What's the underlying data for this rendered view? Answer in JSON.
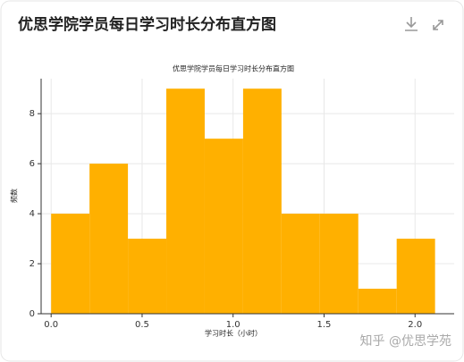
{
  "header": {
    "title": "优思学院学员每日学习时长分布直方图"
  },
  "chart_data": {
    "type": "histogram",
    "title": "优思学院学员每日学习时长分布直方图",
    "x_label": "学习时长（小时）",
    "y_label": "频数",
    "bins": [
      0,
      0.211,
      0.422,
      0.633,
      0.844,
      1.055,
      1.266,
      1.477,
      1.688,
      1.899,
      2.11
    ],
    "counts": [
      4,
      6,
      3,
      9,
      7,
      9,
      4,
      4,
      1,
      3
    ],
    "color": "#ffb000",
    "xlim": [
      -0.055,
      2.215
    ],
    "ylim": [
      0,
      9.4
    ],
    "xticks": [
      {
        "value": 0,
        "label": "0.0"
      },
      {
        "value": 0.5,
        "label": "0.5"
      },
      {
        "value": 1,
        "label": "1.0"
      },
      {
        "value": 1.5,
        "label": "1.5"
      },
      {
        "value": 2,
        "label": "2.0"
      }
    ],
    "yticks": [
      0,
      2,
      4,
      6,
      8
    ],
    "grid": true
  },
  "watermark": "知乎 @优思学苑"
}
